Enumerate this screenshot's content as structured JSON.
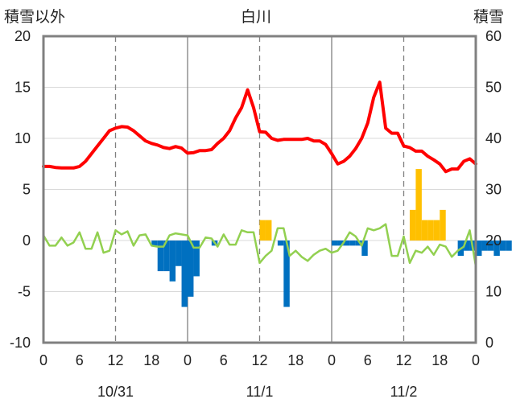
{
  "chart_data": {
    "type": "bar+line",
    "title": "白川",
    "left_axis_label": "積雪以外",
    "right_axis_label": "積雪",
    "left_ylim": [
      -10,
      20
    ],
    "left_yticks": [
      "20",
      "15",
      "10",
      "5",
      "0",
      "-5",
      "-10"
    ],
    "right_ylim": [
      0,
      60
    ],
    "right_yticks": [
      "60",
      "50",
      "40",
      "30",
      "20",
      "10",
      "0"
    ],
    "x_range_hours": [
      0,
      72
    ],
    "x_tick_labels": [
      "0",
      "6",
      "12",
      "18",
      "0",
      "6",
      "12",
      "18",
      "0",
      "6",
      "12",
      "18",
      "0"
    ],
    "date_labels": [
      "10/31",
      "11/1",
      "11/2"
    ],
    "grid": "dashed vertical at 12h, solid vertical at midnight",
    "colors": {
      "snow_depth_line": "#ff0000",
      "temperature_line": "#92d050",
      "bar_positive": "#ffc000",
      "bar_negative": "#0070c0",
      "frame": "#808080",
      "grid": "#808080"
    },
    "series": [
      {
        "axis": "right",
        "style": "line",
        "x": [
          0,
          1,
          2,
          3,
          4,
          5,
          6,
          7,
          8,
          9,
          10,
          11,
          12,
          13,
          14,
          15,
          16,
          17,
          18,
          19,
          20,
          21,
          22,
          23,
          24,
          25,
          26,
          27,
          28,
          29,
          30,
          31,
          32,
          33,
          34,
          35,
          36,
          37,
          38,
          39,
          40,
          41,
          42,
          43,
          44,
          45,
          46,
          47,
          48,
          49,
          50,
          51,
          52,
          53,
          54,
          55,
          56,
          57,
          58,
          59,
          60,
          61,
          62,
          63,
          64,
          65,
          66,
          67,
          68,
          69,
          70,
          71,
          72
        ],
        "values": [
          34.5,
          34.5,
          34.3,
          34.2,
          34.2,
          34.2,
          34.5,
          35.5,
          37,
          38.5,
          40,
          41.5,
          42,
          42.3,
          42.2,
          41.5,
          40.5,
          39.5,
          39,
          38.7,
          38.2,
          38,
          38.4,
          38.1,
          37.1,
          37.2,
          37.6,
          37.6,
          37.8,
          39,
          40,
          41.5,
          44,
          46,
          49.5,
          46,
          41.3,
          41.2,
          40,
          39.6,
          39.8,
          39.8,
          39.8,
          39.8,
          40,
          39.5,
          39.5,
          38.8,
          37,
          35,
          35.5,
          36.5,
          38,
          40,
          43,
          48,
          51,
          42,
          41,
          41,
          38.5,
          38.2,
          37.5,
          37.5,
          36.5,
          35.8,
          35,
          33.5,
          34,
          34,
          35.5,
          36,
          35
        ]
      },
      {
        "axis": "left",
        "style": "line",
        "x": [
          0,
          1,
          2,
          3,
          4,
          5,
          6,
          7,
          8,
          9,
          10,
          11,
          12,
          13,
          14,
          15,
          16,
          17,
          18,
          19,
          20,
          21,
          22,
          23,
          24,
          25,
          26,
          27,
          28,
          29,
          30,
          31,
          32,
          33,
          34,
          35,
          36,
          37,
          38,
          39,
          40,
          41,
          42,
          43,
          44,
          45,
          46,
          47,
          48,
          49,
          50,
          51,
          52,
          53,
          54,
          55,
          56,
          57,
          58,
          59,
          60,
          61,
          62,
          63,
          64,
          65,
          66,
          67,
          68,
          69,
          70,
          71,
          72
        ],
        "values": [
          0.5,
          -0.5,
          -0.5,
          0.3,
          -0.5,
          -0.2,
          0.8,
          -0.8,
          -0.8,
          0.8,
          -1.2,
          -1,
          1,
          0.6,
          0.9,
          -0.5,
          0.5,
          0.6,
          -0.5,
          -0.6,
          -0.6,
          0.5,
          0.7,
          0.6,
          0.5,
          -0.7,
          -0.7,
          0.3,
          0.2,
          -0.6,
          0.6,
          -0.4,
          -0.4,
          1,
          0.8,
          0.8,
          -2.2,
          -1.5,
          -1,
          1.2,
          1.2,
          -1.5,
          -1,
          -1.6,
          -2,
          -1.4,
          -1,
          -0.8,
          -1.2,
          -1,
          -0.2,
          0.8,
          0.4,
          -0.5,
          1.2,
          1,
          1.2,
          1.6,
          -1.5,
          -1.5,
          0.4,
          -2.2,
          -1,
          -1.2,
          -0.6,
          -1.4,
          -0.4,
          -0.6,
          -1.6,
          -1,
          -0.6,
          1,
          -2.5
        ]
      },
      {
        "axis": "left",
        "style": "bar",
        "start_hour": 0,
        "values": [
          0,
          0,
          0,
          0,
          0,
          0,
          0,
          0,
          0,
          0,
          0,
          0,
          0,
          0,
          0,
          0,
          0,
          0,
          -0.5,
          -3,
          -3,
          -4,
          -2.5,
          -6.5,
          -5.5,
          -3.5,
          0,
          0,
          -0.5,
          0,
          0,
          0,
          0,
          0,
          0,
          0,
          2,
          2,
          0,
          -0.5,
          -6.5,
          0,
          0,
          0,
          0,
          0,
          0,
          0,
          -0.5,
          -0.5,
          -0.5,
          -0.5,
          -0.5,
          -1.5,
          0,
          0,
          0,
          0,
          0,
          0,
          0,
          3,
          7,
          2,
          2,
          2,
          3,
          0,
          0,
          -1.5,
          -1,
          -1,
          -1.5,
          -1,
          -1,
          -1.5,
          -1,
          -1,
          0
        ]
      }
    ]
  }
}
